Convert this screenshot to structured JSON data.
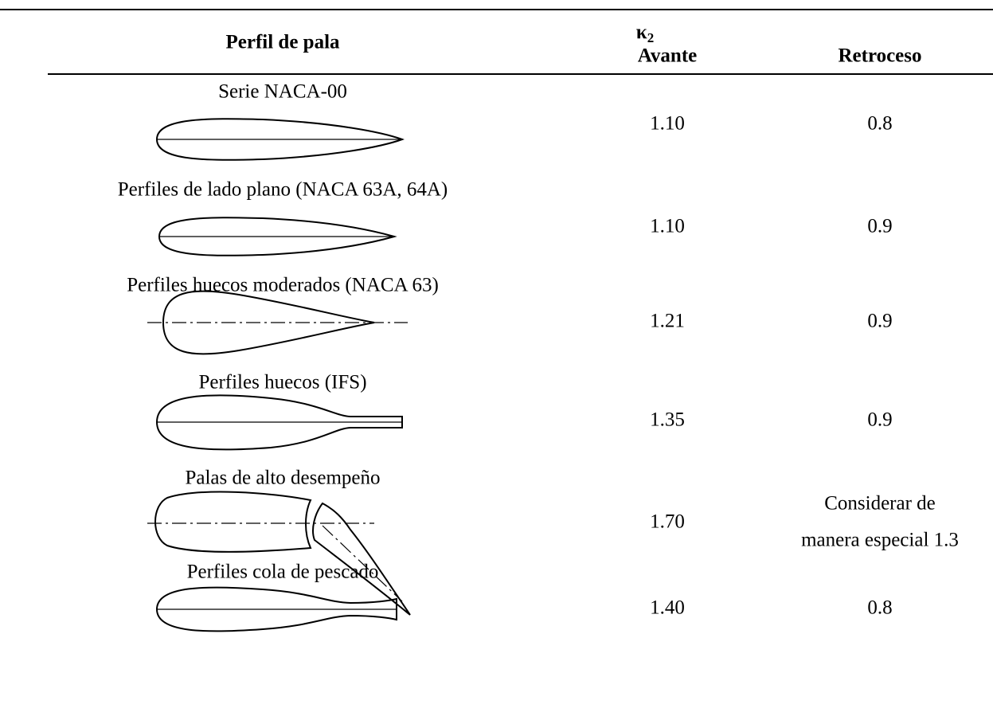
{
  "header": {
    "profile": "Perfil de pala",
    "kappa": {
      "symbol": "κ",
      "subscript": "2"
    },
    "ahead": "Avante",
    "astern": "Retroceso"
  },
  "table": {
    "rows": [
      [
        "Serie NACA-00",
        "1.10",
        "0.8"
      ],
      [
        "Perfiles de lado plano (NACA 63A, 64A)",
        "1.10",
        "0.9"
      ],
      [
        "Perfiles huecos moderados (NACA 63)",
        "1.21",
        "0.9"
      ],
      [
        "Perfiles huecos (IFS)",
        "1.35",
        "0.9"
      ],
      [
        "Palas de alto desempeño",
        "1.70",
        [
          "Considerar de",
          "manera especial 1.3"
        ]
      ],
      [
        "Perfiles cola de pescado",
        "1.40",
        "0.8"
      ]
    ]
  }
}
